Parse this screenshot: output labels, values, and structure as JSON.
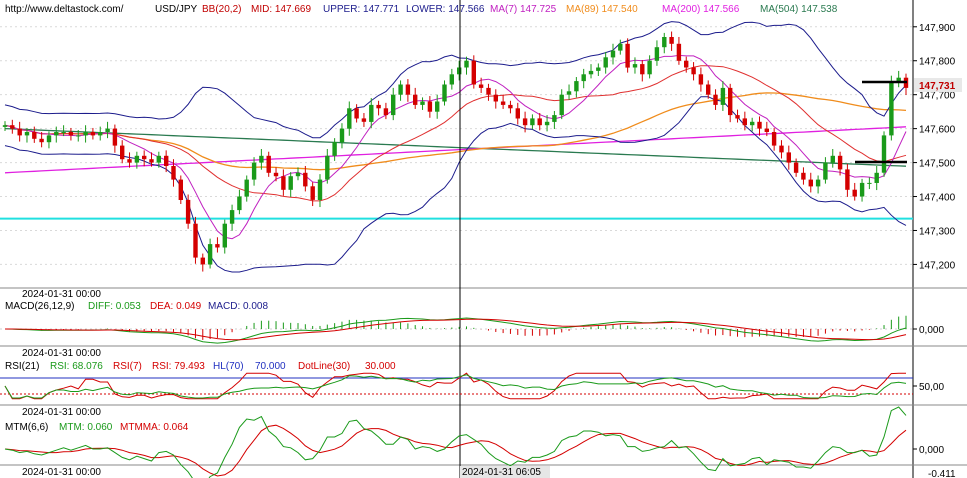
{
  "header": {
    "site": "http://www.deltastock.com/",
    "symbol": "USD/JPY",
    "bb_label": "BB(20,2)",
    "mid": "MID: 147.669",
    "upper": "UPPER: 147.771",
    "lower": "LOWER: 147.566",
    "ma7": "MA(7)  147.725",
    "ma89": "MA(89)  147.540",
    "ma200": "MA(200)  147.566",
    "ma504": "MA(504)  147.538"
  },
  "colors": {
    "up": "#1a9a1a",
    "down": "#d40000",
    "bb": "#1c1c8c",
    "mid": "#e03030",
    "ma7": "#c020c0",
    "ma89": "#f08c1c",
    "ma200": "#e020e0",
    "ma504": "#2a7a50",
    "support": "#20e0e0",
    "macd_diff": "#1a9a1a",
    "macd_dea": "#d40000",
    "rsi1": "#1a9a1a",
    "rsi2": "#d40000",
    "hl": "#2030c0",
    "dotline": "#d40000",
    "mtm": "#1a9a1a",
    "mtmma": "#d40000"
  },
  "price_panel": {
    "y_ticks": [
      "147,900",
      "147,800",
      "147,700",
      "147,600",
      "147,500",
      "147,400",
      "147,300",
      "147,200"
    ],
    "last_price": "147,731",
    "time_label": "2024-01-31 00:00"
  },
  "macd_panel": {
    "label": "MACD(26,12,9)",
    "diff": "DIFF: 0.053",
    "dea": "DEA: 0.049",
    "macd": "MACD: 0.008",
    "tick": "0,000",
    "time_label": "2024-01-31 00:00"
  },
  "rsi_panel": {
    "label": "RSI(21)",
    "rsi1": "RSI: 68.076",
    "rsi2": "RSI(7)",
    "rsi2_value": "RSI: 79.493",
    "hl": "HL(70)",
    "hl_value": "70.000",
    "dotline": "DotLine(30)",
    "dotline_value": "30.000",
    "tick": "50,00",
    "time_label": "2024-01-31 00:00"
  },
  "mtm_panel": {
    "label": "MTM(6,6)",
    "mtm": "MTM: 0.060",
    "mtmma": "MTMMA: 0.064",
    "tick": "0,000"
  },
  "x_axis": {
    "left_label": "2024-01-31 00:00",
    "cursor_label": "2024-01-31 06:05",
    "right_label": "-0.411"
  },
  "chart_data": {
    "type": "candlestick",
    "symbol": "USD/JPY",
    "ylim": [
      147.16,
      147.92
    ],
    "support_level": 147.335,
    "closes": [
      147.61,
      147.6,
      147.58,
      147.59,
      147.57,
      147.56,
      147.58,
      147.59,
      147.59,
      147.58,
      147.58,
      147.59,
      147.58,
      147.59,
      147.6,
      147.55,
      147.51,
      147.5,
      147.52,
      147.51,
      147.5,
      147.52,
      147.49,
      147.45,
      147.39,
      147.32,
      147.22,
      147.2,
      147.26,
      147.25,
      147.32,
      147.36,
      147.4,
      147.45,
      147.5,
      147.52,
      147.47,
      147.46,
      147.42,
      147.46,
      147.47,
      147.43,
      147.39,
      147.45,
      147.52,
      147.56,
      147.6,
      147.66,
      147.63,
      147.62,
      147.67,
      147.66,
      147.64,
      147.7,
      147.73,
      147.7,
      147.67,
      147.68,
      147.65,
      147.68,
      147.73,
      147.76,
      147.78,
      147.8,
      147.73,
      147.72,
      147.7,
      147.68,
      147.67,
      147.66,
      147.63,
      147.61,
      147.63,
      147.61,
      147.62,
      147.64,
      147.7,
      147.71,
      147.74,
      147.76,
      147.77,
      147.78,
      147.81,
      147.83,
      147.85,
      147.78,
      147.79,
      147.76,
      147.8,
      147.84,
      147.87,
      147.85,
      147.8,
      147.78,
      147.76,
      147.73,
      147.7,
      147.67,
      147.72,
      147.64,
      147.63,
      147.61,
      147.62,
      147.6,
      147.59,
      147.55,
      147.53,
      147.5,
      147.47,
      147.45,
      147.43,
      147.45,
      147.5,
      147.52,
      147.48,
      147.42,
      147.4,
      147.44,
      147.44,
      147.47,
      147.58,
      147.74,
      147.75,
      147.72
    ]
  }
}
